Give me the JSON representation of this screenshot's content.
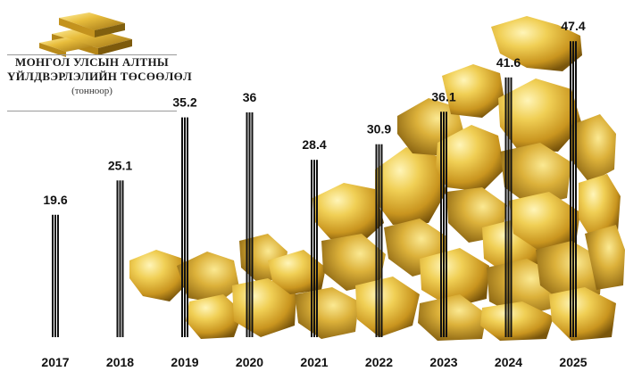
{
  "title": {
    "line1": "МОНГОЛ УЛСЫН АЛТНЫ",
    "line2": "ҮЙЛДВЭРЛЭЛИЙН ТӨСӨӨЛӨЛ",
    "subtitle": "(тонноор)"
  },
  "colors": {
    "bar": "#111111",
    "gold_light": "#f6e27a",
    "gold_mid": "#d9ac2c",
    "gold_dark": "#8a6510",
    "text": "#111111"
  },
  "chart_data": {
    "type": "bar",
    "categories": [
      "2017",
      "2018",
      "2019",
      "2020",
      "2021",
      "2022",
      "2023",
      "2024",
      "2025"
    ],
    "values": [
      19.6,
      25.1,
      35.2,
      36,
      28.4,
      30.9,
      36.1,
      41.6,
      47.4
    ],
    "value_labels": [
      "19.6",
      "25.1",
      "35.2",
      "36",
      "28.4",
      "30.9",
      "36.1",
      "41.6",
      "47.4"
    ],
    "ylim": [
      0,
      50
    ],
    "grid": false,
    "title": "МОНГОЛ УЛСЫН АЛТНЫ ҮЙЛДВЭРЛЭЛИЙН ТӨСӨӨЛӨЛ",
    "subtitle": "(тонноор)",
    "xlabel": "",
    "ylabel": ""
  }
}
